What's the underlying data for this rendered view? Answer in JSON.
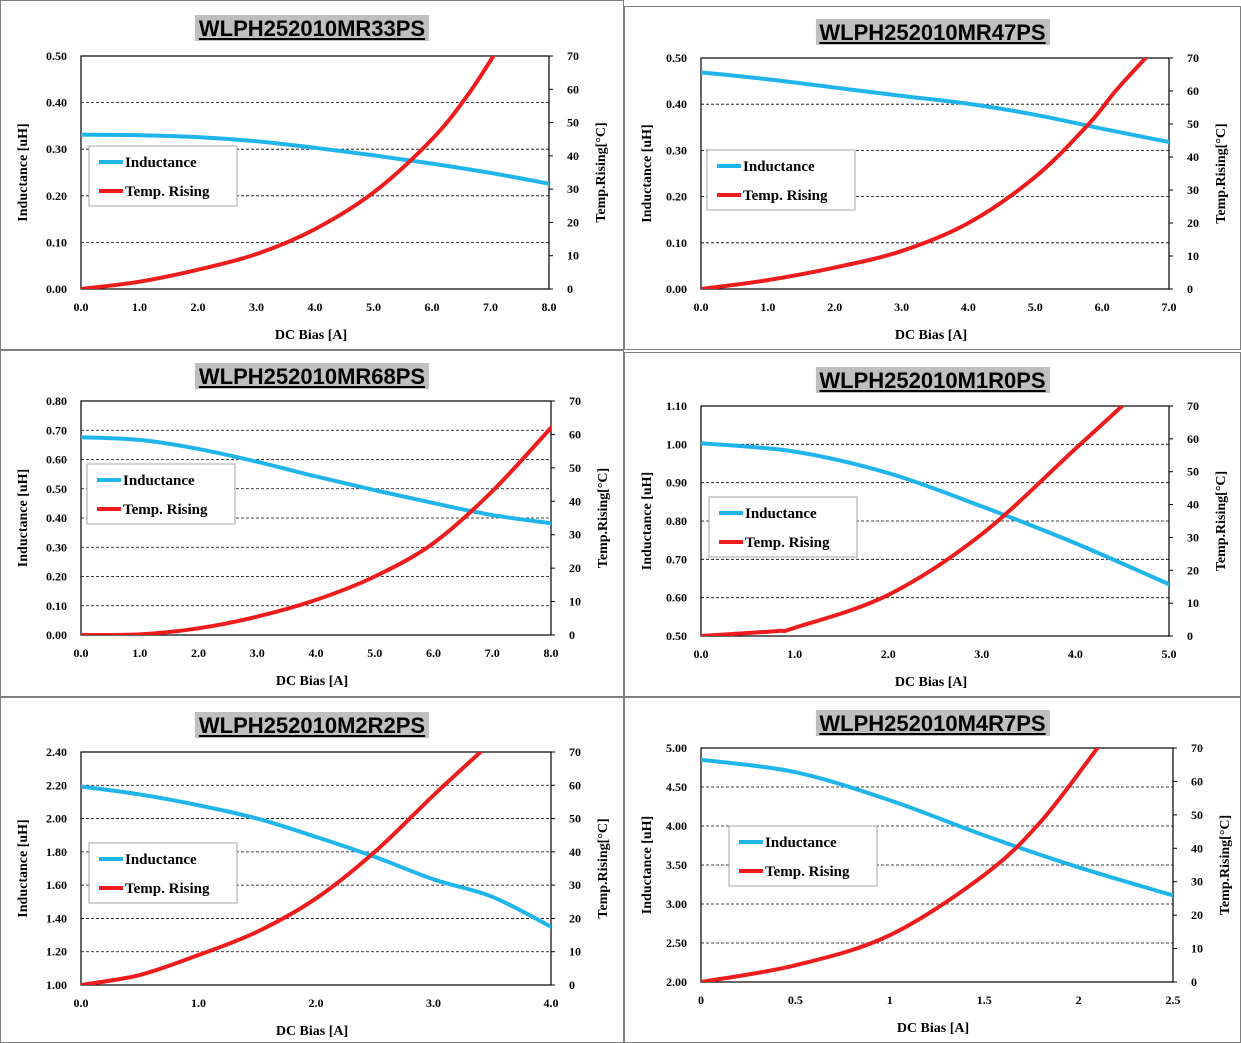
{
  "colors": {
    "inductance": "#1fb5ea",
    "temp": "#ee1c1c"
  },
  "chart_data": [
    {
      "type": "line",
      "title": "WLPH252010MR33PS",
      "xlabel": "DC Bias [A]",
      "ylabel": "Inductance [uH]",
      "y2label": "Temp.Rising[°C]",
      "xlim": [
        0,
        8
      ],
      "xticks": [
        "0.0",
        "1.0",
        "2.0",
        "3.0",
        "4.0",
        "5.0",
        "6.0",
        "7.0",
        "8.0"
      ],
      "ylim": [
        0,
        0.5
      ],
      "yticks": [
        "0.00",
        "0.10",
        "0.20",
        "0.30",
        "0.40",
        "0.50"
      ],
      "y2lim": [
        0,
        70
      ],
      "y2ticks": [
        "0",
        "10",
        "20",
        "30",
        "40",
        "50",
        "60",
        "70"
      ],
      "legend": [
        "Inductance",
        "Temp. Rising"
      ],
      "series": [
        {
          "name": "Inductance",
          "axis": "left",
          "points": [
            [
              0,
              0.331
            ],
            [
              1,
              0.33
            ],
            [
              2,
              0.326
            ],
            [
              3,
              0.317
            ],
            [
              4,
              0.303
            ],
            [
              5,
              0.287
            ],
            [
              6,
              0.269
            ],
            [
              7,
              0.249
            ],
            [
              8,
              0.226
            ]
          ]
        },
        {
          "name": "Temp. Rising",
          "axis": "right",
          "points": [
            [
              0,
              0
            ],
            [
              1,
              2.2
            ],
            [
              2,
              5.8
            ],
            [
              3,
              10.5
            ],
            [
              4,
              18
            ],
            [
              5,
              29
            ],
            [
              6,
              45
            ],
            [
              6.6,
              58
            ],
            [
              7.05,
              70
            ]
          ]
        }
      ]
    },
    {
      "type": "line",
      "title": "WLPH252010MR47PS",
      "xlabel": "DC Bias [A]",
      "ylabel": "Inductance [uH]",
      "y2label": "Temp.Rising[°C]",
      "xlim": [
        0,
        7
      ],
      "xticks": [
        "0.0",
        "1.0",
        "2.0",
        "3.0",
        "4.0",
        "5.0",
        "6.0",
        "7.0"
      ],
      "ylim": [
        0,
        0.5
      ],
      "yticks": [
        "0.00",
        "0.10",
        "0.20",
        "0.30",
        "0.40",
        "0.50"
      ],
      "y2lim": [
        0,
        70
      ],
      "y2ticks": [
        "0",
        "10",
        "20",
        "30",
        "40",
        "50",
        "60",
        "70"
      ],
      "legend": [
        "Inductance",
        "Temp. Rising"
      ],
      "series": [
        {
          "name": "Inductance",
          "axis": "left",
          "points": [
            [
              0,
              0.469
            ],
            [
              1,
              0.454
            ],
            [
              2,
              0.436
            ],
            [
              3,
              0.418
            ],
            [
              4,
              0.401
            ],
            [
              5,
              0.377
            ],
            [
              6,
              0.347
            ],
            [
              7,
              0.318
            ]
          ]
        },
        {
          "name": "Temp. Rising",
          "axis": "right",
          "points": [
            [
              0,
              0
            ],
            [
              1,
              2.7
            ],
            [
              2,
              6.5
            ],
            [
              3,
              11.5
            ],
            [
              4,
              20
            ],
            [
              5,
              34
            ],
            [
              5.8,
              50
            ],
            [
              6.2,
              60
            ],
            [
              6.65,
              70
            ]
          ]
        }
      ]
    },
    {
      "type": "line",
      "title": "WLPH252010MR68PS",
      "xlabel": "DC Bias [A]",
      "ylabel": "Inductance [uH]",
      "y2label": "Temp.Rising[°C]",
      "xlim": [
        0,
        8
      ],
      "xticks": [
        "0.0",
        "1.0",
        "2.0",
        "3.0",
        "4.0",
        "5.0",
        "6.0",
        "7.0",
        "8.0"
      ],
      "ylim": [
        0,
        0.8
      ],
      "yticks": [
        "0.00",
        "0.10",
        "0.20",
        "0.30",
        "0.40",
        "0.50",
        "0.60",
        "0.70",
        "0.80"
      ],
      "y2lim": [
        0,
        70
      ],
      "y2ticks": [
        "0",
        "10",
        "20",
        "30",
        "40",
        "50",
        "60",
        "70"
      ],
      "legend": [
        "Inductance",
        "Temp. Rising"
      ],
      "series": [
        {
          "name": "Inductance",
          "axis": "left",
          "points": [
            [
              0,
              0.676
            ],
            [
              1,
              0.667
            ],
            [
              2,
              0.636
            ],
            [
              3,
              0.592
            ],
            [
              4,
              0.542
            ],
            [
              5,
              0.495
            ],
            [
              6,
              0.451
            ],
            [
              7,
              0.41
            ],
            [
              8,
              0.382
            ]
          ]
        },
        {
          "name": "Temp. Rising",
          "axis": "right",
          "points": [
            [
              0,
              0
            ],
            [
              1,
              0.2
            ],
            [
              2,
              2
            ],
            [
              3,
              5.5
            ],
            [
              4,
              10.5
            ],
            [
              5,
              17.5
            ],
            [
              6,
              27.5
            ],
            [
              7,
              43
            ],
            [
              8,
              62
            ]
          ]
        }
      ]
    },
    {
      "type": "line",
      "title": "WLPH252010M1R0PS",
      "xlabel": "DC Bias [A]",
      "ylabel": "Inductance [uH]",
      "y2label": "Temp.Rising[°C]",
      "xlim": [
        0,
        5
      ],
      "xticks": [
        "0.0",
        "1.0",
        "2.0",
        "3.0",
        "4.0",
        "5.0"
      ],
      "ylim": [
        0.5,
        1.1
      ],
      "yticks": [
        "0.50",
        "0.60",
        "0.70",
        "0.80",
        "0.90",
        "1.00",
        "1.10"
      ],
      "y2lim": [
        0,
        70
      ],
      "y2ticks": [
        "0",
        "10",
        "20",
        "30",
        "40",
        "50",
        "60",
        "70"
      ],
      "legend": [
        "Inductance",
        "Temp. Rising"
      ],
      "series": [
        {
          "name": "Inductance",
          "axis": "left",
          "points": [
            [
              0,
              1.003
            ],
            [
              1,
              0.981
            ],
            [
              2,
              0.925
            ],
            [
              3,
              0.838
            ],
            [
              4,
              0.742
            ],
            [
              5,
              0.635
            ]
          ]
        },
        {
          "name": "Temp. Rising",
          "axis": "right",
          "points": [
            [
              0,
              0
            ],
            [
              0.8,
              1.5
            ],
            [
              1,
              2.5
            ],
            [
              2,
              12.5
            ],
            [
              3,
              31
            ],
            [
              4,
              57
            ],
            [
              4.5,
              70
            ]
          ]
        }
      ]
    },
    {
      "type": "line",
      "title": "WLPH252010M2R2PS",
      "xlabel": "DC Bias [A]",
      "ylabel": "Inductance [uH]",
      "y2label": "Temp.Rising[°C]",
      "xlim": [
        0,
        4
      ],
      "xticks": [
        "0.0",
        "1.0",
        "2.0",
        "3.0",
        "4.0"
      ],
      "ylim": [
        1.0,
        2.4
      ],
      "yticks": [
        "1.00",
        "1.20",
        "1.40",
        "1.60",
        "1.80",
        "2.00",
        "2.20",
        "2.40"
      ],
      "y2lim": [
        0,
        70
      ],
      "y2ticks": [
        "0",
        "10",
        "20",
        "30",
        "40",
        "50",
        "60",
        "70"
      ],
      "legend": [
        "Inductance",
        "Temp. Rising"
      ],
      "series": [
        {
          "name": "Inductance",
          "axis": "left",
          "points": [
            [
              0,
              2.192
            ],
            [
              0.5,
              2.145
            ],
            [
              1,
              2.08
            ],
            [
              1.5,
              2.0
            ],
            [
              2,
              1.89
            ],
            [
              2.5,
              1.77
            ],
            [
              3,
              1.635
            ],
            [
              3.5,
              1.53
            ],
            [
              4,
              1.35
            ]
          ]
        },
        {
          "name": "Temp. Rising",
          "axis": "right",
          "points": [
            [
              0,
              0
            ],
            [
              0.5,
              3
            ],
            [
              1,
              9
            ],
            [
              1.5,
              16
            ],
            [
              2,
              26
            ],
            [
              2.5,
              40
            ],
            [
              3,
              57
            ],
            [
              3.4,
              70
            ]
          ]
        }
      ]
    },
    {
      "type": "line",
      "title": "WLPH252010M4R7PS",
      "xlabel": "DC Bias [A]",
      "ylabel": "Inductance [uH]",
      "y2label": "Temp.Rising[°C]",
      "xlim": [
        0,
        2.5
      ],
      "xticks": [
        "0",
        "0.5",
        "1",
        "1.5",
        "2",
        "2.5"
      ],
      "ylim": [
        2.0,
        5.0
      ],
      "yticks": [
        "2.00",
        "2.50",
        "3.00",
        "3.50",
        "4.00",
        "4.50",
        "5.00"
      ],
      "y2lim": [
        0,
        70
      ],
      "y2ticks": [
        "0",
        "10",
        "20",
        "30",
        "40",
        "50",
        "60",
        "70"
      ],
      "legend": [
        "Inductance",
        "Temp. Rising"
      ],
      "series": [
        {
          "name": "Inductance",
          "axis": "left",
          "points": [
            [
              0,
              4.85
            ],
            [
              0.5,
              4.69
            ],
            [
              1,
              4.33
            ],
            [
              1.5,
              3.88
            ],
            [
              2,
              3.47
            ],
            [
              2.5,
              3.11
            ]
          ]
        },
        {
          "name": "Temp. Rising",
          "axis": "right",
          "points": [
            [
              0,
              0
            ],
            [
              0.5,
              5
            ],
            [
              1,
              14
            ],
            [
              1.5,
              32
            ],
            [
              1.8,
              48
            ],
            [
              2.1,
              70
            ]
          ]
        }
      ]
    }
  ]
}
